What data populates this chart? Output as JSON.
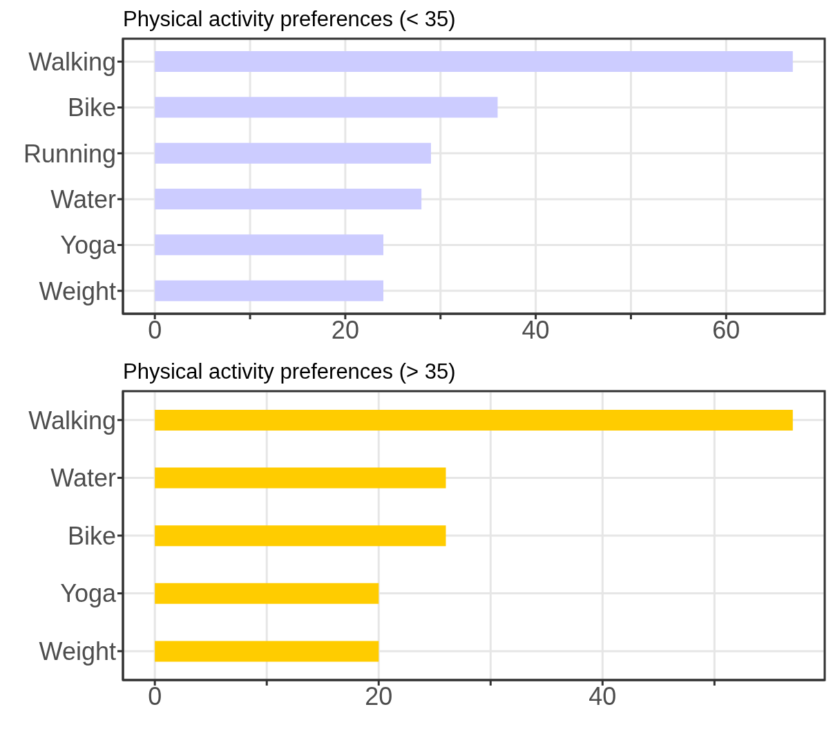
{
  "chart_data": [
    {
      "type": "bar",
      "orientation": "horizontal",
      "title": "Physical activity preferences (< 35)",
      "categories": [
        "Walking",
        "Bike",
        "Running",
        "Water",
        "Yoga",
        "Weight"
      ],
      "values": [
        67,
        36,
        29,
        28,
        24,
        24
      ],
      "color": "#ccccff",
      "xlim": [
        -3.35,
        70.35
      ],
      "xticks": [
        0,
        {
          "value": 10,
          "label": null
        },
        20,
        {
          "value": 30,
          "label": null
        },
        40,
        {
          "value": 50,
          "label": null
        },
        60
      ],
      "grid": true
    },
    {
      "type": "bar",
      "orientation": "horizontal",
      "title": "Physical activity preferences (> 35)",
      "categories": [
        "Walking",
        "Water",
        "Bike",
        "Yoga",
        "Weight"
      ],
      "values": [
        57,
        26,
        26,
        20,
        20
      ],
      "color": "#ffcc00",
      "xlim": [
        -2.85,
        59.85
      ],
      "xticks": [
        0,
        {
          "value": 10,
          "label": null
        },
        20,
        {
          "value": 30,
          "label": null
        },
        40,
        {
          "value": 50,
          "label": null
        }
      ],
      "grid": true
    }
  ]
}
